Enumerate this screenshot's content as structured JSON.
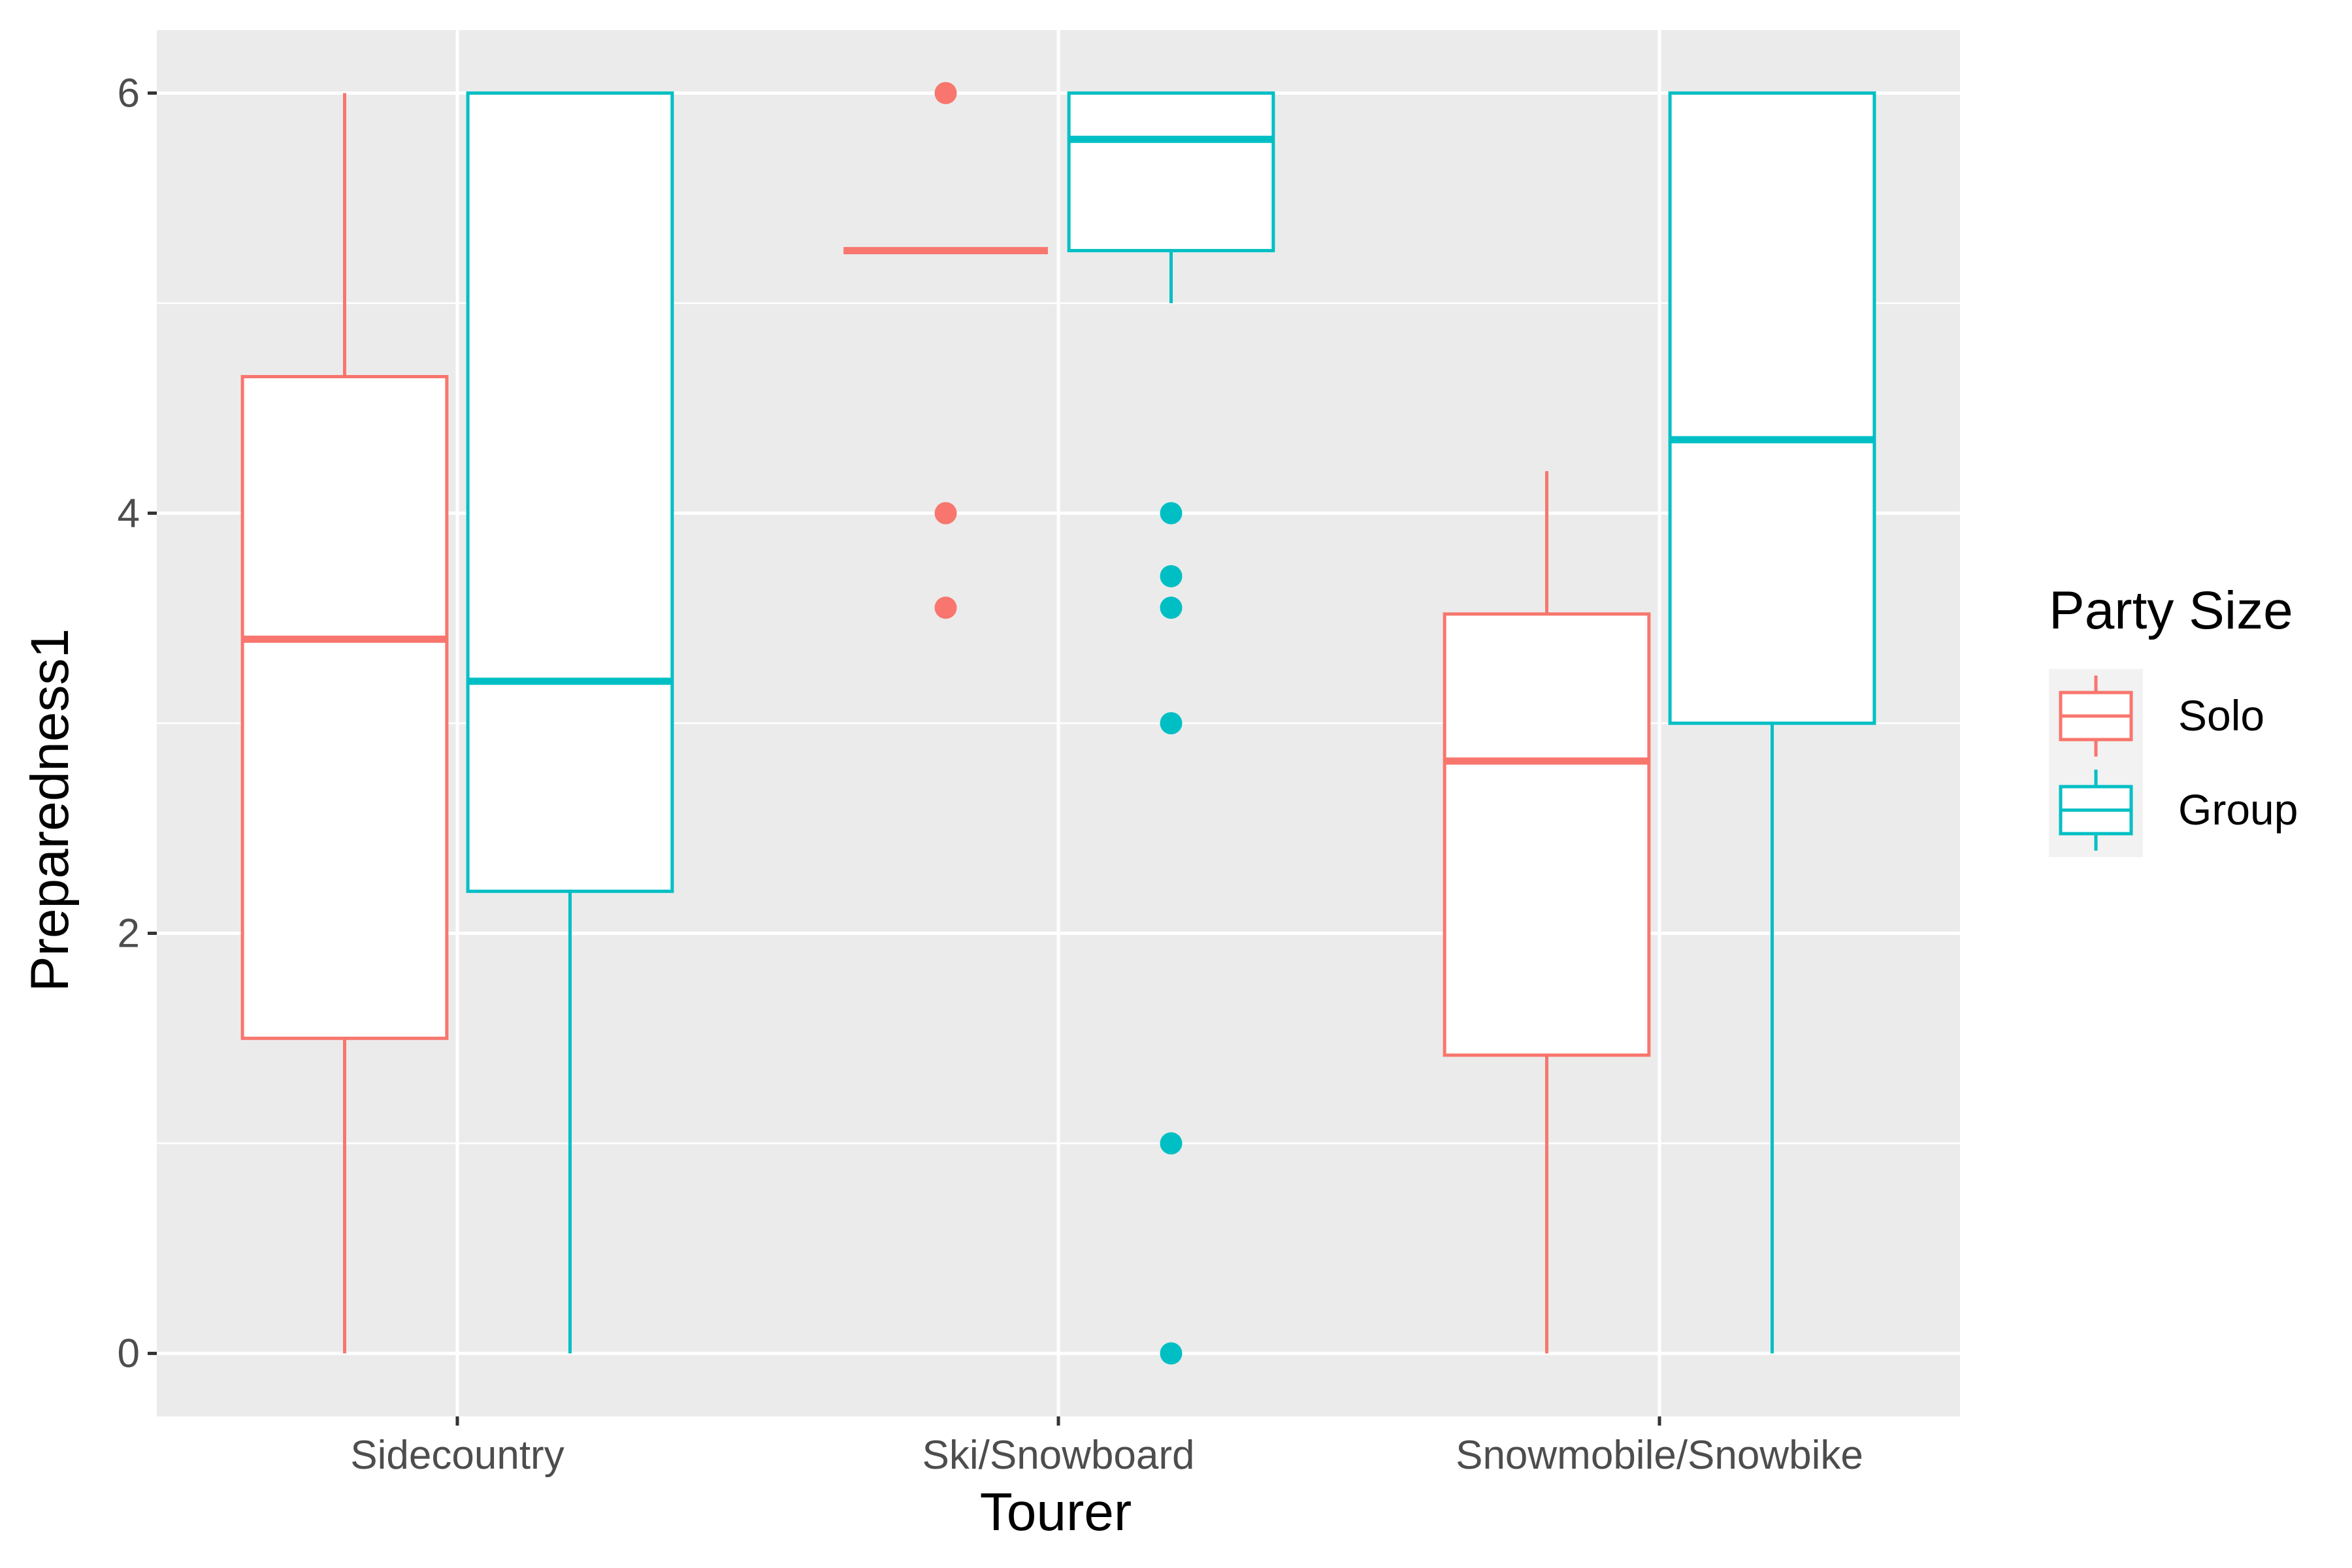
{
  "chart_data": {
    "type": "boxplot",
    "xlabel": "Tourer",
    "ylabel": "Preparedness1",
    "ylim": [
      -0.3,
      6.3
    ],
    "yticks": [
      0,
      2,
      4,
      6
    ],
    "grid": true,
    "legend": {
      "title": "Party Size",
      "placement": "right"
    },
    "categories": [
      "Sidecountry",
      "Ski/Snowboard",
      "Snowmobile/Snowbike"
    ],
    "series": [
      {
        "name": "Solo",
        "color": "#F8766D",
        "boxes": [
          {
            "category": "Sidecountry",
            "min": 0,
            "q1": 1.5,
            "median": 3.4,
            "q3": 4.65,
            "max": 6,
            "outliers": []
          },
          {
            "category": "Ski/Snowboard",
            "min": 5.25,
            "q1": 5.25,
            "median": 5.25,
            "q3": 5.25,
            "max": 5.25,
            "outliers": [
              6,
              4,
              3.55
            ]
          },
          {
            "category": "Snowmobile/Snowbike",
            "min": 0,
            "q1": 1.42,
            "median": 2.82,
            "q3": 3.52,
            "max": 4.2,
            "outliers": []
          }
        ]
      },
      {
        "name": "Group",
        "color": "#00BFC4",
        "boxes": [
          {
            "category": "Sidecountry",
            "min": 0,
            "q1": 2.2,
            "median": 3.2,
            "q3": 6,
            "max": 6,
            "outliers": []
          },
          {
            "category": "Ski/Snowboard",
            "min": 5.0,
            "q1": 5.25,
            "median": 5.78,
            "q3": 6,
            "max": 6,
            "outliers": [
              4,
              3.7,
              3.55,
              3,
              1,
              0
            ]
          },
          {
            "category": "Snowmobile/Snowbike",
            "min": 0,
            "q1": 3.0,
            "median": 4.35,
            "q3": 6,
            "max": 6,
            "outliers": []
          }
        ]
      }
    ]
  }
}
